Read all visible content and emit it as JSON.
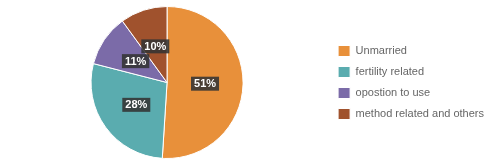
{
  "chart_data": {
    "type": "pie",
    "categories": [
      "Unmarried",
      "fertility related",
      "opostion to use",
      "method related and others"
    ],
    "values": [
      51,
      28,
      11,
      10
    ],
    "value_labels": [
      "51%",
      "28%",
      "11%",
      "10%"
    ],
    "colors": [
      "#E8903A",
      "#5AACAF",
      "#7B6BA8",
      "#A0522D"
    ],
    "data_labels": true,
    "legend": "right"
  }
}
